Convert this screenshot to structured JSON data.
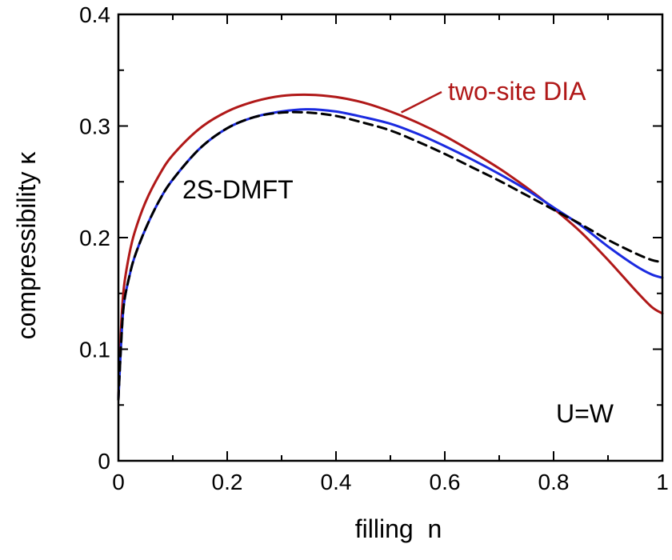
{
  "chart_data": {
    "type": "line",
    "title": "",
    "xlabel": "filling  n",
    "ylabel": "compressibility κ",
    "xlim": [
      0,
      1
    ],
    "ylim": [
      0,
      0.4
    ],
    "xticks": [
      0,
      0.2,
      0.4,
      0.6,
      0.8,
      1
    ],
    "xtick_labels": [
      "0",
      "0.2",
      "0.4",
      "0.6",
      "0.8",
      "1"
    ],
    "yticks": [
      0,
      0.1,
      0.2,
      0.3,
      0.4
    ],
    "ytick_labels": [
      "0",
      "0.1",
      "0.2",
      "0.3",
      "0.4"
    ],
    "grid": false,
    "legend": "none",
    "annotations": {
      "two_site_dia": "two-site DIA",
      "dmft": "2S-DMFT",
      "interaction": "U=W"
    },
    "series": [
      {
        "label_ref": "two_site_dia",
        "color": "#b01818",
        "dash": "solid",
        "x": [
          0.0,
          0.005,
          0.01,
          0.02,
          0.03,
          0.05,
          0.075,
          0.1,
          0.15,
          0.2,
          0.25,
          0.3,
          0.35,
          0.4,
          0.45,
          0.5,
          0.55,
          0.6,
          0.65,
          0.7,
          0.75,
          0.8,
          0.85,
          0.9,
          0.95,
          0.98,
          1.0
        ],
        "y": [
          0.055,
          0.12,
          0.155,
          0.185,
          0.205,
          0.232,
          0.256,
          0.274,
          0.298,
          0.313,
          0.322,
          0.327,
          0.328,
          0.326,
          0.321,
          0.313,
          0.303,
          0.291,
          0.277,
          0.262,
          0.245,
          0.226,
          0.205,
          0.18,
          0.153,
          0.138,
          0.132
        ]
      },
      {
        "label_ref": "dmft",
        "color": "#1a2ae0",
        "dash": "solid",
        "x": [
          0.0,
          0.005,
          0.01,
          0.02,
          0.03,
          0.05,
          0.075,
          0.1,
          0.15,
          0.2,
          0.25,
          0.3,
          0.35,
          0.4,
          0.45,
          0.5,
          0.55,
          0.6,
          0.65,
          0.7,
          0.75,
          0.8,
          0.85,
          0.9,
          0.95,
          0.98,
          1.0
        ],
        "y": [
          0.055,
          0.105,
          0.14,
          0.165,
          0.183,
          0.208,
          0.233,
          0.252,
          0.28,
          0.298,
          0.308,
          0.313,
          0.315,
          0.313,
          0.308,
          0.302,
          0.293,
          0.282,
          0.27,
          0.257,
          0.243,
          0.227,
          0.211,
          0.192,
          0.175,
          0.167,
          0.164
        ]
      },
      {
        "label_ref": "",
        "color": "#000000",
        "dash": "dashed",
        "x": [
          0.0,
          0.005,
          0.01,
          0.02,
          0.03,
          0.05,
          0.075,
          0.1,
          0.15,
          0.2,
          0.25,
          0.3,
          0.35,
          0.4,
          0.45,
          0.5,
          0.55,
          0.6,
          0.65,
          0.7,
          0.75,
          0.8,
          0.85,
          0.9,
          0.95,
          0.98,
          1.0
        ],
        "y": [
          0.055,
          0.105,
          0.14,
          0.165,
          0.183,
          0.208,
          0.233,
          0.252,
          0.28,
          0.298,
          0.308,
          0.312,
          0.312,
          0.309,
          0.303,
          0.296,
          0.286,
          0.275,
          0.263,
          0.251,
          0.238,
          0.225,
          0.212,
          0.198,
          0.186,
          0.18,
          0.178
        ]
      }
    ]
  }
}
